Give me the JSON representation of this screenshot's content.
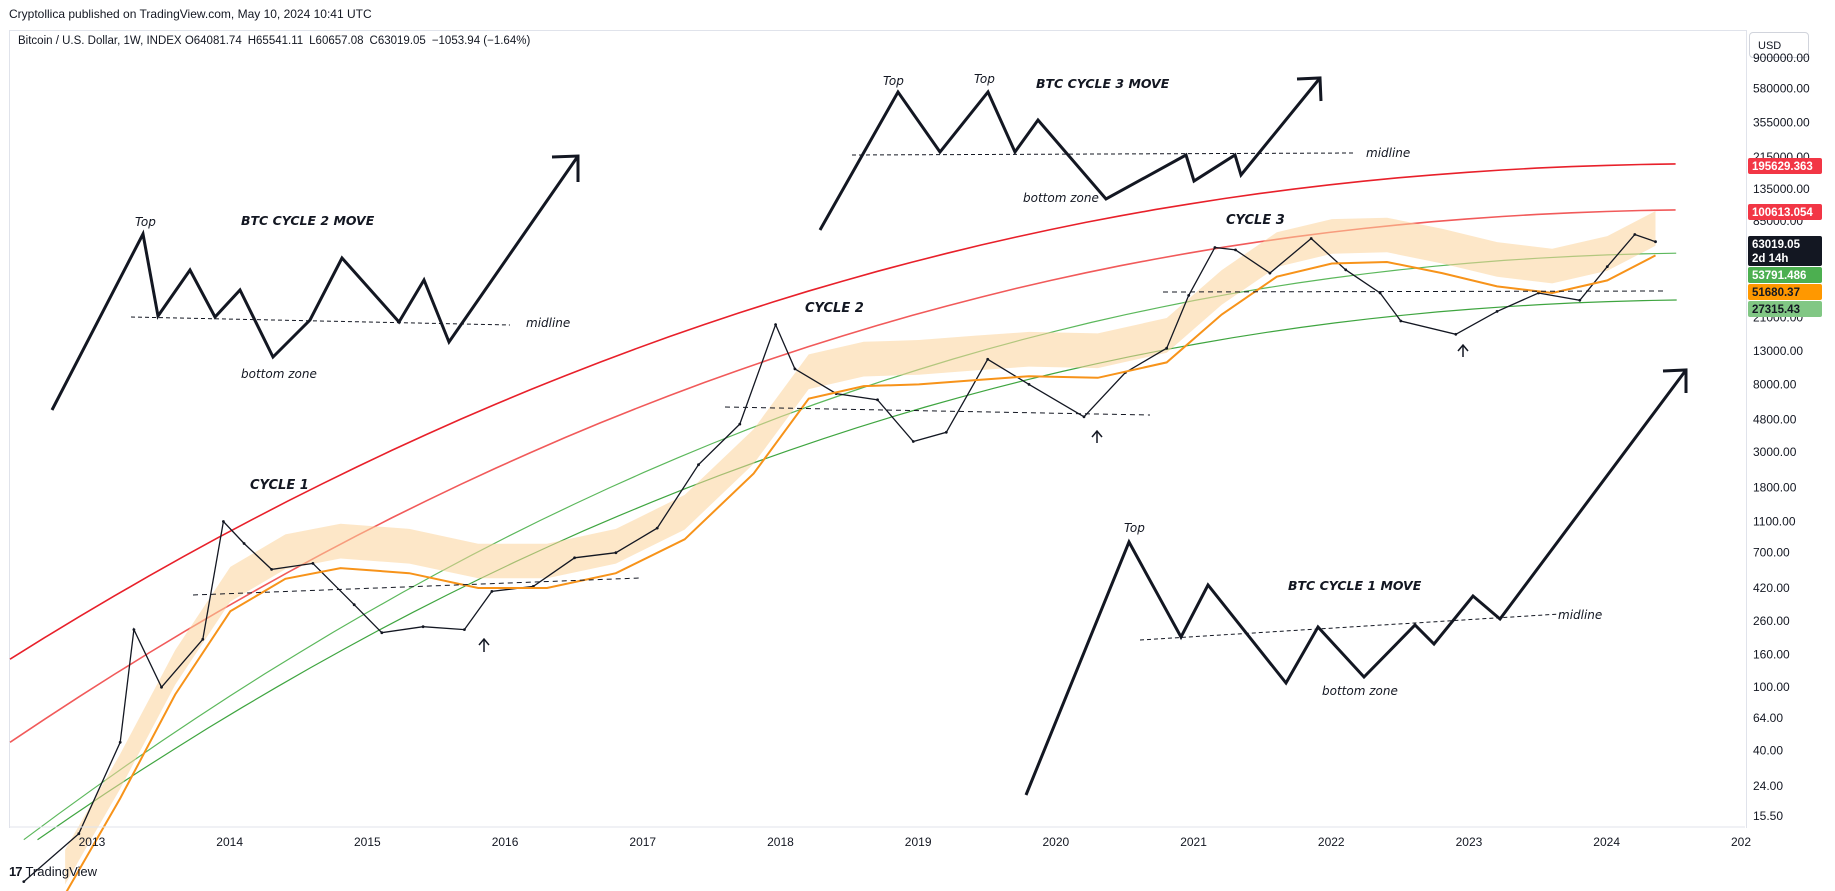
{
  "header": {
    "publisher": "Cryptollica published on TradingView.com, May 10, 2024 10:41 UTC",
    "symbol": "Bitcoin / U.S. Dollar, 1W, INDEX",
    "ohlc": {
      "open": "O64081.74",
      "high": "H65541.11",
      "low": "L60657.08",
      "close": "C63019.05",
      "change": "−1053.94 (−1.64%)"
    },
    "currency": "USD"
  },
  "footer": {
    "brand": "TradingView",
    "brand_mark": "17"
  },
  "chart_data": {
    "type": "line",
    "title": "Bitcoin / U.S. Dollar, 1W, INDEX",
    "y_scale": "log",
    "ylim": [
      12,
      1100000
    ],
    "y_ticks": [
      "15.50",
      "24.00",
      "40.00",
      "64.00",
      "100.00",
      "160.00",
      "260.00",
      "420.00",
      "700.00",
      "1100.00",
      "1800.00",
      "3000.00",
      "4800.00",
      "8000.00",
      "13000.00",
      "21000.00",
      "85000.00",
      "135000.00",
      "215000.00",
      "355000.00",
      "580000.00",
      "900000.00"
    ],
    "x_ticks": [
      "2013",
      "2014",
      "2015",
      "2016",
      "2017",
      "2018",
      "2019",
      "2020",
      "2021",
      "2022",
      "2023",
      "2024",
      "202"
    ],
    "xlim": [
      2012.4,
      2025.0
    ],
    "series": [
      {
        "name": "",
        "color": "#131722",
        "x": [
          2012.5,
          2012.9,
          2013.2,
          2013.3,
          2013.5,
          2013.8,
          2013.95,
          2014.1,
          2014.3,
          2014.6,
          2014.9,
          2015.1,
          2015.4,
          2015.7,
          2015.9,
          2016.2,
          2016.5,
          2016.8,
          2017.1,
          2017.4,
          2017.7,
          2017.96,
          2018.1,
          2018.4,
          2018.7,
          2018.96,
          2019.2,
          2019.5,
          2019.8,
          2020.2,
          2020.5,
          2020.8,
          2020.96,
          2021.15,
          2021.3,
          2021.55,
          2021.85,
          2022.1,
          2022.35,
          2022.5,
          2022.9,
          2023.2,
          2023.5,
          2023.8,
          2024.0,
          2024.2,
          2024.35
        ],
        "values": [
          6,
          12,
          45,
          230,
          100,
          200,
          1100,
          800,
          550,
          600,
          330,
          220,
          240,
          230,
          400,
          430,
          650,
          700,
          1000,
          2500,
          4500,
          19000,
          10000,
          7000,
          6400,
          3500,
          4000,
          11500,
          8000,
          5000,
          9500,
          13500,
          29000,
          58000,
          56000,
          40000,
          66000,
          42000,
          30000,
          20000,
          16500,
          23000,
          30000,
          27000,
          44000,
          70000,
          63019
        ]
      },
      {
        "name": "",
        "color": "#f7931a",
        "x": [
          2012.8,
          2013.2,
          2013.6,
          2014.0,
          2014.4,
          2014.8,
          2015.3,
          2015.8,
          2016.3,
          2016.8,
          2017.3,
          2017.8,
          2018.2,
          2018.6,
          2019.0,
          2019.4,
          2019.8,
          2020.3,
          2020.8,
          2021.2,
          2021.6,
          2022.0,
          2022.4,
          2022.8,
          2023.2,
          2023.6,
          2024.0,
          2024.35
        ],
        "values": [
          5,
          20,
          90,
          300,
          480,
          560,
          520,
          420,
          420,
          520,
          850,
          2200,
          6500,
          7800,
          8000,
          8500,
          9000,
          8800,
          11000,
          22000,
          38000,
          46000,
          47000,
          40000,
          33000,
          30000,
          36000,
          51680
        ]
      }
    ],
    "bands": [
      {
        "name": "",
        "color": "#e8202a",
        "x": [
          2012.4,
          2025.0
        ],
        "values": [
          150,
          195629
        ]
      },
      {
        "name": "",
        "color": "#f15a5a",
        "x": [
          2012.4,
          2025.0
        ],
        "values": [
          45,
          100613
        ]
      },
      {
        "name": "",
        "color": "#5cb85c",
        "x": [
          2012.5,
          2025.0
        ],
        "values": [
          11,
          53791
        ]
      },
      {
        "name": "",
        "color": "#3fa540",
        "x": [
          2012.6,
          2025.0
        ],
        "values": [
          11,
          27315
        ]
      }
    ],
    "price_badges": [
      {
        "label": "195629.363",
        "value": 195629,
        "bg": "#f23645",
        "fg": "#ffffff"
      },
      {
        "label": "100613.054",
        "value": 100613,
        "bg": "#f23645",
        "fg": "#ffffff"
      },
      {
        "label": "63019.05",
        "sub": "2d 14h",
        "value": 63019,
        "bg": "#131722",
        "fg": "#ffffff"
      },
      {
        "label": "53791.486",
        "value": 53791,
        "bg": "#4caf50",
        "fg": "#ffffff"
      },
      {
        "label": "51680.37",
        "value": 51680,
        "bg": "#ff9800",
        "fg": "#131722"
      },
      {
        "label": "27315.43",
        "value": 27315,
        "bg": "#81c784",
        "fg": "#131722"
      }
    ],
    "annotations": {
      "cycle_labels": [
        "CYCLE 1",
        "CYCLE 2",
        "CYCLE 3"
      ],
      "moves": [
        {
          "title": "BTC CYCLE 2 MOVE",
          "top": "Top",
          "midline": "midline",
          "bottom": "bottom zone"
        },
        {
          "title": "BTC CYCLE 3 MOVE",
          "top1": "Top",
          "top2": "Top",
          "midline": "midline",
          "bottom": "bottom zone"
        },
        {
          "title": "BTC CYCLE 1 MOVE",
          "top": "Top",
          "midline": "midline",
          "bottom": "bottom zone"
        }
      ]
    },
    "grid": false,
    "legend": "none"
  }
}
